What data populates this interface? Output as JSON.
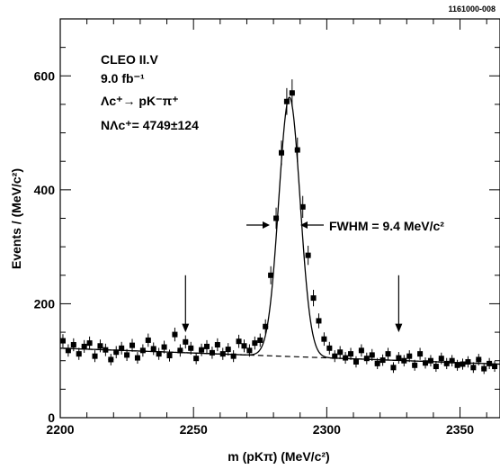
{
  "chart_data": {
    "type": "scatter",
    "figure_id": "1161000-008",
    "xlabel": "m (pKπ) (MeV/c²)",
    "ylabel": "Events / (MeV/c²)",
    "xlim": [
      2200,
      2365
    ],
    "ylim": [
      0,
      700
    ],
    "x_ticks": [
      "2200",
      "2250",
      "2300",
      "2350"
    ],
    "y_ticks": [
      "0",
      "200",
      "400",
      "600"
    ],
    "annotations": {
      "experiment": "CLEO II.V",
      "luminosity": "9.0 fb⁻¹",
      "decay": "Λc⁺→ pK⁻π⁺",
      "yield": "NΛc⁺= 4749±124",
      "fwhm": "FWHM = 9.4 MeV/c²"
    },
    "signal_region_markers": [
      2247,
      2327
    ],
    "series": [
      {
        "kind": "points_with_errors",
        "x": [
          2201,
          2203,
          2205,
          2207,
          2209,
          2211,
          2213,
          2215,
          2217,
          2219,
          2221,
          2223,
          2225,
          2227,
          2229,
          2231,
          2233,
          2235,
          2237,
          2239,
          2241,
          2243,
          2245,
          2247,
          2249,
          2251,
          2253,
          2255,
          2257,
          2259,
          2261,
          2263,
          2265,
          2267,
          2269,
          2271,
          2273,
          2275,
          2277,
          2279,
          2281,
          2283,
          2285,
          2287,
          2289,
          2291,
          2293,
          2295,
          2297,
          2299,
          2301,
          2303,
          2305,
          2307,
          2309,
          2311,
          2313,
          2315,
          2317,
          2319,
          2321,
          2323,
          2325,
          2327,
          2329,
          2331,
          2333,
          2335,
          2337,
          2339,
          2341,
          2343,
          2345,
          2347,
          2349,
          2351,
          2353,
          2355,
          2357,
          2359,
          2361,
          2363
        ],
        "y": [
          135,
          118,
          128,
          112,
          125,
          131,
          108,
          126,
          119,
          102,
          115,
          122,
          110,
          127,
          105,
          118,
          136,
          121,
          112,
          124,
          109,
          146,
          118,
          133,
          122,
          104,
          119,
          125,
          114,
          128,
          112,
          120,
          108,
          134,
          126,
          118,
          131,
          136,
          160,
          250,
          350,
          465,
          555,
          570,
          470,
          370,
          285,
          210,
          170,
          138,
          122,
          108,
          115,
          105,
          112,
          98,
          118,
          104,
          110,
          95,
          101,
          112,
          88,
          105,
          100,
          108,
          92,
          112,
          96,
          100,
          90,
          104,
          95,
          100,
          92,
          94,
          98,
          88,
          102,
          86,
          95,
          90
        ]
      },
      {
        "kind": "fit_curve",
        "description": "Gaussian signal + linear background",
        "peak_mean": 2286,
        "fwhm": 9.4,
        "peak_amplitude": 455
      },
      {
        "kind": "background_fit",
        "style": "dashed",
        "x": [
          2200,
          2365
        ],
        "y": [
          122,
          94
        ]
      }
    ]
  }
}
